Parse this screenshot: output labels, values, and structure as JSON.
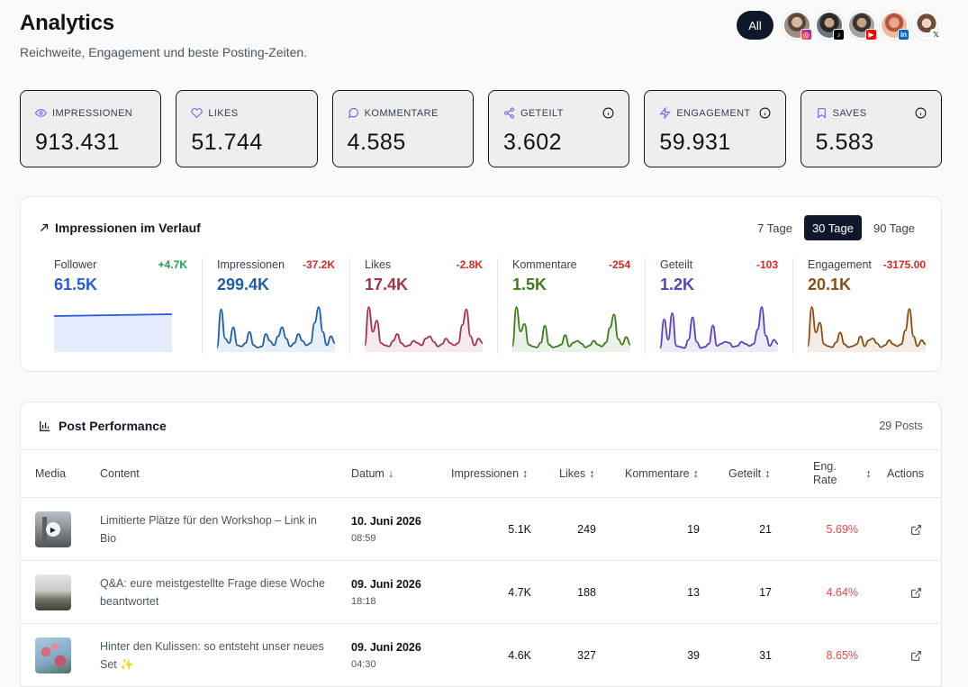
{
  "header": {
    "title": "Analytics",
    "subtitle": "Reichweite, Engagement und beste Posting-Zeiten."
  },
  "accounts": {
    "all_label": "All",
    "avatars": [
      {
        "name": "instagram-account",
        "badge_icon": "instagram-icon",
        "color": "#e1306c"
      },
      {
        "name": "tiktok-account",
        "badge_icon": "tiktok-icon",
        "color": "#000000"
      },
      {
        "name": "youtube-account",
        "badge_icon": "youtube-icon",
        "color": "#ff0000"
      },
      {
        "name": "linkedin-account",
        "badge_icon": "linkedin-icon",
        "color": "#0a66c2"
      },
      {
        "name": "x-account",
        "badge_icon": "x-icon",
        "color": "#ffffff"
      }
    ]
  },
  "kpis": [
    {
      "label": "IMPRESSIONEN",
      "value": "913.431",
      "icon": "eye-icon"
    },
    {
      "label": "LIKES",
      "value": "51.744",
      "icon": "heart-icon"
    },
    {
      "label": "KOMMENTARE",
      "value": "4.585",
      "icon": "comment-icon"
    },
    {
      "label": "GETEILT",
      "value": "3.602",
      "icon": "share-icon"
    },
    {
      "label": "ENGAGEMENT",
      "value": "59.931",
      "icon": "lightning-icon"
    },
    {
      "label": "SAVES",
      "value": "5.583",
      "icon": "bookmark-icon"
    }
  ],
  "trend": {
    "title": "Impressionen im Verlauf",
    "ranges": [
      "7 Tage",
      "30 Tage",
      "90 Tage"
    ],
    "active_range": "30 Tage",
    "metrics": [
      {
        "label": "Follower",
        "delta": "+4.7K",
        "value": "61.5K",
        "color": "#2b5bd7",
        "delta_color": "#16a34a",
        "series": [
          10,
          10.2,
          10.4,
          10.6,
          10.8,
          11,
          11.2,
          11.4,
          11.6,
          11.8,
          12,
          12.2,
          12.4,
          12.6,
          12.8,
          13,
          13.2,
          13.4,
          13.6,
          13.8,
          14,
          14.2,
          14.4,
          14.6,
          14.8,
          15,
          15.2,
          15.4,
          15.6,
          15.8
        ]
      },
      {
        "label": "Impressionen",
        "delta": "-37.2K",
        "value": "299.4K",
        "color": "#1f5fa8",
        "delta_color": "#dc2626",
        "series": [
          4,
          38,
          12,
          8,
          22,
          6,
          5,
          8,
          18,
          6,
          4,
          5,
          16,
          10,
          6,
          14,
          22,
          12,
          5,
          8,
          16,
          10,
          6,
          8,
          26,
          40,
          18,
          6,
          14,
          8
        ]
      },
      {
        "label": "Likes",
        "delta": "-2.8K",
        "value": "17.4K",
        "color": "#a3324a",
        "delta_color": "#dc2626",
        "series": [
          6,
          40,
          18,
          28,
          8,
          6,
          5,
          10,
          16,
          8,
          5,
          6,
          10,
          8,
          6,
          12,
          14,
          9,
          5,
          7,
          12,
          8,
          6,
          8,
          24,
          38,
          14,
          6,
          12,
          8
        ]
      },
      {
        "label": "Kommentare",
        "delta": "-254",
        "value": "1.5K",
        "color": "#3f7a1d",
        "delta_color": "#dc2626",
        "series": [
          6,
          48,
          22,
          30,
          8,
          6,
          5,
          10,
          28,
          8,
          5,
          6,
          8,
          18,
          6,
          10,
          12,
          9,
          5,
          7,
          12,
          8,
          6,
          10,
          26,
          40,
          14,
          8,
          16,
          8
        ]
      },
      {
        "label": "Geteilt",
        "delta": "-103",
        "value": "1.2K",
        "color": "#5b3fc4",
        "delta_color": "#dc2626",
        "series": [
          4,
          32,
          12,
          38,
          6,
          5,
          4,
          12,
          34,
          10,
          4,
          5,
          8,
          26,
          6,
          8,
          10,
          9,
          5,
          6,
          10,
          8,
          6,
          8,
          22,
          44,
          16,
          6,
          12,
          8
        ]
      },
      {
        "label": "Engagement",
        "delta": "-3175.00",
        "value": "20.1K",
        "color": "#8a4d12",
        "delta_color": "#dc2626",
        "series": [
          6,
          46,
          20,
          30,
          8,
          6,
          5,
          10,
          20,
          8,
          5,
          6,
          8,
          16,
          6,
          12,
          14,
          9,
          5,
          7,
          12,
          8,
          6,
          8,
          22,
          44,
          16,
          6,
          12,
          8
        ]
      }
    ]
  },
  "posts": {
    "title": "Post Performance",
    "count": "29 Posts",
    "columns": {
      "media": "Media",
      "content": "Content",
      "datum": "Datum",
      "impressionen": "Impressionen",
      "likes": "Likes",
      "kommentare": "Kommentare",
      "geteilt": "Geteilt",
      "eng_rate_1": "Eng.",
      "eng_rate_2": "Rate",
      "actions": "Actions"
    },
    "rows": [
      {
        "content": "Limitierte Plätze für den Workshop – Link in Bio",
        "date": "10. Juni 2026",
        "time": "08:59",
        "impressionen": "5.1K",
        "likes": "249",
        "kommentare": "19",
        "geteilt": "21",
        "eng_rate": "5.69%",
        "media": "video"
      },
      {
        "content": "Q&A: eure meistgestellte Frage diese Woche beantwortet",
        "date": "09. Juni 2026",
        "time": "18:18",
        "impressionen": "4.7K",
        "likes": "188",
        "kommentare": "13",
        "geteilt": "17",
        "eng_rate": "4.64%",
        "media": "image"
      },
      {
        "content": "Hinter den Kulissen: so entsteht unser neues Set ✨",
        "date": "09. Juni 2026",
        "time": "04:30",
        "impressionen": "4.6K",
        "likes": "327",
        "kommentare": "39",
        "geteilt": "31",
        "eng_rate": "8.65%",
        "media": "image"
      }
    ]
  }
}
